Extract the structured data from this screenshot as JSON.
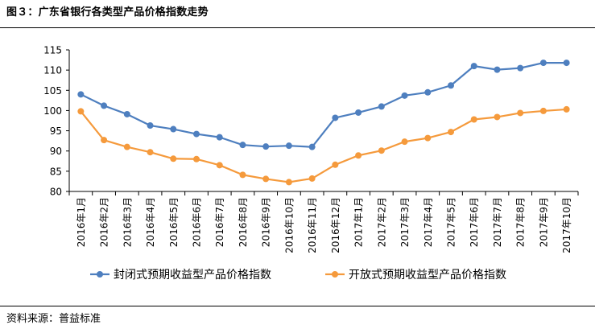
{
  "figure": {
    "caption": "图３：广东省银行各类型产品价格指数走势",
    "source": "资料来源：普益标准"
  },
  "chart_data": {
    "type": "line",
    "categories": [
      "2016年1月",
      "2016年2月",
      "2016年3月",
      "2016年4月",
      "2016年5月",
      "2016年6月",
      "2016年7月",
      "2016年8月",
      "2016年9月",
      "2016年10月",
      "2016年11月",
      "2016年12月",
      "2017年1月",
      "2017年2月",
      "2017年3月",
      "2017年4月",
      "2017年5月",
      "2017年6月",
      "2017年7月",
      "2017年8月",
      "2017年9月",
      "2017年10月"
    ],
    "series": [
      {
        "name": "封闭式预期收益型产品价格指数",
        "color": "#4e7fbf",
        "values": [
          104.0,
          101.2,
          99.1,
          96.3,
          95.4,
          94.2,
          93.4,
          91.5,
          91.1,
          91.3,
          91.0,
          98.2,
          99.5,
          101.0,
          103.7,
          104.5,
          106.2,
          111.0,
          110.1,
          110.5,
          111.8,
          111.8
        ]
      },
      {
        "name": "开放式预期收益型产品价格指数",
        "color": "#f59a3c",
        "values": [
          99.8,
          92.7,
          91.0,
          89.7,
          88.1,
          88.0,
          86.5,
          84.1,
          83.1,
          82.3,
          83.2,
          86.6,
          88.9,
          90.1,
          92.3,
          93.2,
          94.7,
          97.8,
          98.4,
          99.4,
          99.9,
          100.3
        ]
      }
    ],
    "y_ticks": [
      "115",
      "110",
      "105",
      "100",
      "95",
      "90",
      "85",
      "80"
    ],
    "ylim": [
      80,
      115
    ],
    "grid": false,
    "legend_position": "bottom"
  }
}
